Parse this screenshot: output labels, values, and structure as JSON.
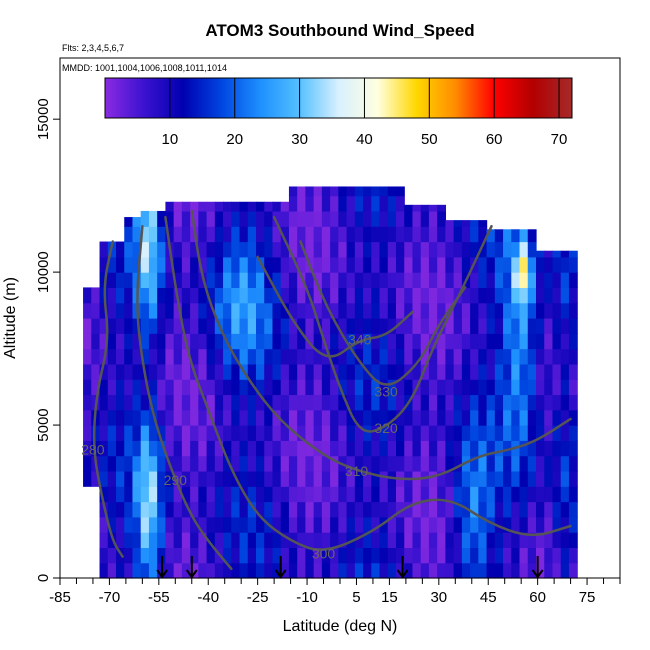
{
  "chart_data": {
    "type": "heatmap",
    "title": "ATOM3 Southbound Wind_Speed",
    "subtitle_flights": "Flts: 2,3,4,5,6,7",
    "subtitle_dates": "MMDD: 1001,1004,1006,1008,1011,1014",
    "xlabel": "Latitude (deg N)",
    "ylabel": "Altitude (m)",
    "xlim": [
      -85,
      85
    ],
    "ylim": [
      0,
      17000
    ],
    "x_ticks": [
      -85,
      -70,
      -55,
      -40,
      -25,
      -10,
      5,
      15,
      30,
      45,
      60,
      75
    ],
    "x_minor_ticks": [
      -80,
      -75,
      -65,
      -60,
      -50,
      -45,
      -35,
      -30,
      -20,
      -15,
      -5,
      0,
      10,
      20,
      25,
      35,
      40,
      50,
      55,
      65,
      70,
      80,
      85
    ],
    "y_ticks": [
      0,
      5000,
      10000,
      15000
    ],
    "colorbar": {
      "ticks": [
        10,
        20,
        30,
        40,
        50,
        60,
        70
      ],
      "range": [
        0,
        72
      ],
      "colors": [
        "#8a2be2",
        "#3b12d0",
        "#0000b0",
        "#0046e0",
        "#1e90ff",
        "#55c0ff",
        "#d8f0ff",
        "#ffffe0",
        "#ffd700",
        "#ff8c00",
        "#ff0000",
        "#b20000",
        "#a52a2a"
      ]
    },
    "contours": [
      {
        "label": "280",
        "points": [
          [
            -69,
            11000
          ],
          [
            -72,
            9500
          ],
          [
            -70,
            7800
          ],
          [
            -74,
            6000
          ],
          [
            -75,
            4200
          ],
          [
            -72,
            2500
          ],
          [
            -69,
            1200
          ],
          [
            -66,
            700
          ]
        ]
      },
      {
        "label": "290",
        "points": [
          [
            -60,
            11500
          ],
          [
            -62,
            9000
          ],
          [
            -60,
            7000
          ],
          [
            -56,
            5000
          ],
          [
            -50,
            3200
          ],
          [
            -45,
            2000
          ],
          [
            -40,
            1200
          ],
          [
            -33,
            300
          ]
        ]
      },
      {
        "label": "300",
        "points": [
          [
            -53,
            11800
          ],
          [
            -50,
            9500
          ],
          [
            -46,
            7200
          ],
          [
            -40,
            5500
          ],
          [
            -33,
            3500
          ],
          [
            -25,
            2000
          ],
          [
            -15,
            1200
          ],
          [
            -5,
            800
          ],
          [
            10,
            1500
          ],
          [
            22,
            2500
          ],
          [
            34,
            2600
          ],
          [
            45,
            1800
          ],
          [
            58,
            1300
          ],
          [
            70,
            1700
          ]
        ]
      },
      {
        "label": "310",
        "points": [
          [
            -45,
            12000
          ],
          [
            -42,
            9800
          ],
          [
            -36,
            8000
          ],
          [
            -28,
            6500
          ],
          [
            -18,
            5100
          ],
          [
            -5,
            4000
          ],
          [
            5,
            3500
          ],
          [
            18,
            3200
          ],
          [
            30,
            3300
          ],
          [
            42,
            4000
          ],
          [
            52,
            4200
          ],
          [
            60,
            4500
          ],
          [
            70,
            5200
          ]
        ]
      },
      {
        "label": "320",
        "points": [
          [
            -20,
            11800
          ],
          [
            -10,
            9500
          ],
          [
            -5,
            7800
          ],
          [
            0,
            6200
          ],
          [
            6,
            4700
          ],
          [
            14,
            4900
          ],
          [
            22,
            5800
          ],
          [
            28,
            7500
          ],
          [
            36,
            9200
          ],
          [
            46,
            11500
          ]
        ]
      },
      {
        "label": "330",
        "points": [
          [
            -12,
            11000
          ],
          [
            -4,
            8800
          ],
          [
            6,
            7000
          ],
          [
            14,
            6100
          ],
          [
            24,
            7000
          ],
          [
            30,
            8300
          ],
          [
            38,
            9500
          ]
        ]
      },
      {
        "label": "340",
        "points": [
          [
            -25,
            10500
          ],
          [
            -14,
            8300
          ],
          [
            -4,
            7000
          ],
          [
            6,
            7800
          ],
          [
            14,
            7900
          ],
          [
            22,
            8700
          ]
        ]
      }
    ],
    "flight_markers_lat": [
      -54,
      -45,
      -18,
      19,
      60
    ],
    "data_region": {
      "lat_range": [
        -78,
        72
      ],
      "alt_range": [
        0,
        12500
      ]
    }
  }
}
